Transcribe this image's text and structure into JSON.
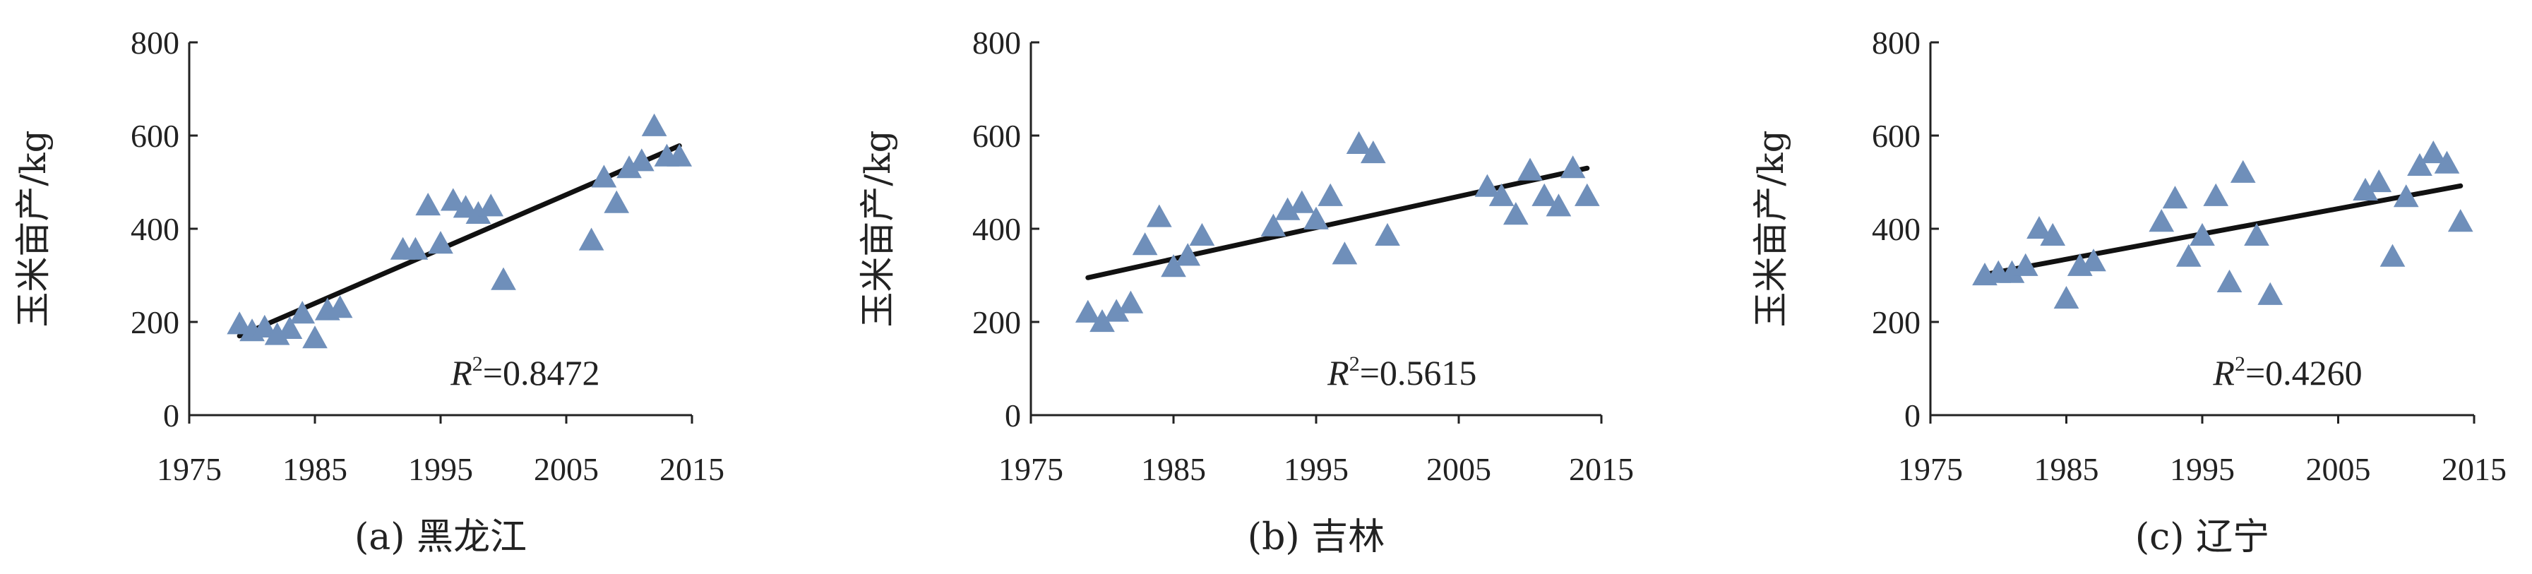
{
  "chart_data": [
    {
      "type": "scatter",
      "caption": "(a) 黑龙江",
      "ylabel": "玉米亩产/kg",
      "r2_label": "R",
      "r2_sup": "2",
      "r2_value": "=0.8472",
      "xlim": [
        1975,
        2015
      ],
      "ylim": [
        0,
        800
      ],
      "xticks": [
        1975,
        1985,
        1995,
        2005,
        2015
      ],
      "yticks": [
        0,
        200,
        400,
        600,
        800
      ],
      "marker_color": "#6f8fba",
      "trendline": [
        [
          1979,
          170
        ],
        [
          2014,
          578
        ]
      ],
      "points": [
        [
          1979,
          195
        ],
        [
          1980,
          180
        ],
        [
          1981,
          188
        ],
        [
          1982,
          172
        ],
        [
          1983,
          185
        ],
        [
          1984,
          218
        ],
        [
          1985,
          165
        ],
        [
          1986,
          225
        ],
        [
          1987,
          230
        ],
        [
          1992,
          355
        ],
        [
          1993,
          355
        ],
        [
          1994,
          450
        ],
        [
          1995,
          368
        ],
        [
          1996,
          460
        ],
        [
          1997,
          445
        ],
        [
          1998,
          432
        ],
        [
          1999,
          448
        ],
        [
          2000,
          290
        ],
        [
          2007,
          375
        ],
        [
          2008,
          510
        ],
        [
          2009,
          455
        ],
        [
          2010,
          530
        ],
        [
          2011,
          545
        ],
        [
          2012,
          620
        ],
        [
          2013,
          555
        ],
        [
          2014,
          555
        ]
      ]
    },
    {
      "type": "scatter",
      "caption": "(b) 吉林",
      "ylabel": "玉米亩产/kg",
      "r2_label": "R",
      "r2_sup": "2",
      "r2_value": "=0.5615",
      "xlim": [
        1975,
        2015
      ],
      "ylim": [
        0,
        800
      ],
      "xticks": [
        1975,
        1985,
        1995,
        2005,
        2015
      ],
      "yticks": [
        0,
        200,
        400,
        600,
        800
      ],
      "marker_color": "#6f8fba",
      "trendline": [
        [
          1979,
          295
        ],
        [
          2014,
          530
        ]
      ],
      "points": [
        [
          1979,
          220
        ],
        [
          1980,
          200
        ],
        [
          1981,
          222
        ],
        [
          1982,
          240
        ],
        [
          1983,
          365
        ],
        [
          1984,
          425
        ],
        [
          1985,
          318
        ],
        [
          1986,
          342
        ],
        [
          1987,
          385
        ],
        [
          1992,
          405
        ],
        [
          1993,
          440
        ],
        [
          1994,
          455
        ],
        [
          1995,
          420
        ],
        [
          1996,
          470
        ],
        [
          1997,
          345
        ],
        [
          1998,
          582
        ],
        [
          1999,
          562
        ],
        [
          2000,
          385
        ],
        [
          2007,
          490
        ],
        [
          2008,
          470
        ],
        [
          2009,
          430
        ],
        [
          2010,
          525
        ],
        [
          2011,
          470
        ],
        [
          2012,
          448
        ],
        [
          2013,
          530
        ],
        [
          2014,
          470
        ]
      ]
    },
    {
      "type": "scatter",
      "caption": "(c) 辽宁",
      "ylabel": "玉米亩产/kg",
      "r2_label": "R",
      "r2_sup": "2",
      "r2_value": "=0.4260",
      "xlim": [
        1975,
        2015
      ],
      "ylim": [
        0,
        800
      ],
      "xticks": [
        1975,
        1985,
        1995,
        2005,
        2015
      ],
      "yticks": [
        0,
        200,
        400,
        600,
        800
      ],
      "marker_color": "#6f8fba",
      "trendline": [
        [
          1979,
          302
        ],
        [
          2014,
          492
        ]
      ],
      "points": [
        [
          1979,
          300
        ],
        [
          1980,
          305
        ],
        [
          1981,
          305
        ],
        [
          1982,
          320
        ],
        [
          1983,
          400
        ],
        [
          1984,
          385
        ],
        [
          1985,
          250
        ],
        [
          1986,
          320
        ],
        [
          1987,
          330
        ],
        [
          1992,
          415
        ],
        [
          1993,
          465
        ],
        [
          1994,
          340
        ],
        [
          1995,
          385
        ],
        [
          1996,
          470
        ],
        [
          1997,
          285
        ],
        [
          1998,
          520
        ],
        [
          1999,
          385
        ],
        [
          2000,
          258
        ],
        [
          2007,
          482
        ],
        [
          2008,
          500
        ],
        [
          2009,
          340
        ],
        [
          2010,
          468
        ],
        [
          2011,
          535
        ],
        [
          2012,
          562
        ],
        [
          2013,
          540
        ],
        [
          2014,
          415
        ]
      ]
    }
  ]
}
